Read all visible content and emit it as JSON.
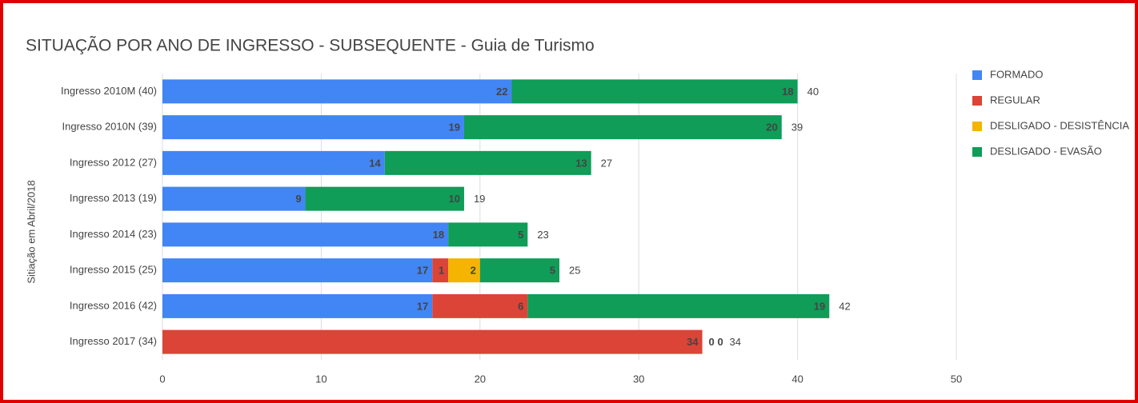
{
  "chart_data": {
    "type": "stacked-bar-horizontal",
    "title": "SITUAÇÃO POR ANO DE INGRESSO - SUBSEQUENTE - Guia de Turismo",
    "ylabel": "Sitiação em Abril/2018",
    "categories": [
      "Ingresso 2010M (40)",
      "Ingresso 2010N (39)",
      "Ingresso 2012 (27)",
      "Ingresso 2013 (19)",
      "Ingresso 2014 (23)",
      "Ingresso 2015 (25)",
      "Ingresso 2016 (42)",
      "Ingresso 2017 (34)"
    ],
    "series": [
      {
        "name": "FORMADO",
        "color": "#4285f4",
        "values": [
          22,
          19,
          14,
          9,
          18,
          17,
          17,
          0
        ]
      },
      {
        "name": "REGULAR",
        "color": "#db4437",
        "values": [
          0,
          0,
          0,
          0,
          0,
          1,
          6,
          34
        ]
      },
      {
        "name": "DESLIGADO - DESISTÊNCIA",
        "color": "#f4b400",
        "values": [
          0,
          0,
          0,
          0,
          0,
          2,
          0,
          0
        ]
      },
      {
        "name": "DESLIGADO - EVASÃO",
        "color": "#0f9d58",
        "values": [
          18,
          20,
          13,
          10,
          5,
          5,
          19,
          0
        ]
      }
    ],
    "totals": [
      40,
      39,
      27,
      19,
      23,
      25,
      42,
      34
    ],
    "xlim": [
      0,
      50
    ],
    "xticks": [
      0,
      10,
      20,
      30,
      40,
      50
    ],
    "grid": true,
    "legend": "right"
  }
}
